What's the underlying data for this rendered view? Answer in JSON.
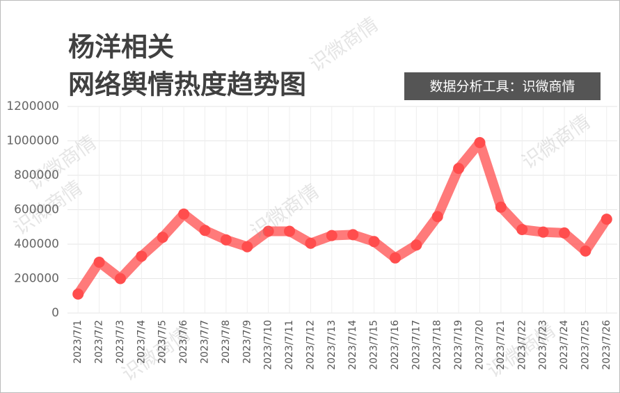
{
  "chart_data": {
    "type": "line",
    "title": [
      "杨洋相关",
      "网络舆情热度趋势图"
    ],
    "badge": "数据分析工具：识微商情",
    "watermarks": [
      "识微商情",
      "识微商情",
      "识微商情",
      "识微商情",
      "识微商情",
      "识微商情",
      "识微商情"
    ],
    "categories": [
      "2023/7/1",
      "2023/7/2",
      "2023/7/3",
      "2023/7/4",
      "2023/7/5",
      "2023/7/6",
      "2023/7/7",
      "2023/7/8",
      "2023/7/9",
      "2023/7/10",
      "2023/7/11",
      "2023/7/12",
      "2023/7/13",
      "2023/7/14",
      "2023/7/15",
      "2023/7/16",
      "2023/7/17",
      "2023/7/18",
      "2023/7/19",
      "2023/7/20",
      "2023/7/21",
      "2023/7/22",
      "2023/7/23",
      "2023/7/24",
      "2023/7/25",
      "2023/7/26"
    ],
    "series": [
      {
        "color": "#ff4d4d",
        "values": [
          110000,
          295000,
          200000,
          330000,
          440000,
          575000,
          480000,
          425000,
          385000,
          475000,
          475000,
          405000,
          450000,
          455000,
          415000,
          320000,
          395000,
          560000,
          840000,
          990000,
          615000,
          485000,
          470000,
          465000,
          360000,
          545000
        ]
      }
    ],
    "ylim": [
      0,
      1200000
    ],
    "yticks": [
      0,
      200000,
      400000,
      600000,
      800000,
      1000000,
      1200000
    ],
    "grid": true
  }
}
